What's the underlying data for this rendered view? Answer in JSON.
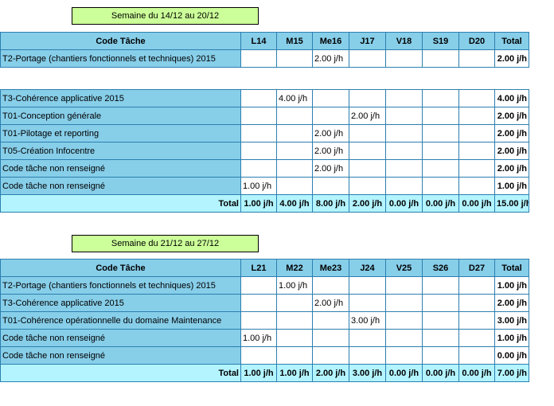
{
  "week1": {
    "label": "Semaine du 14/12 au 20/12",
    "headers": [
      "Code Tâche",
      "L14",
      "M15",
      "Me16",
      "J17",
      "V18",
      "S19",
      "D20",
      "Total"
    ],
    "rows_a": [
      {
        "code": "T2-Portage (chantiers fonctionnels et techniques) 2015",
        "days": [
          "",
          "",
          "2.00 j/h",
          "",
          "",
          "",
          ""
        ],
        "total": "2.00 j/h"
      }
    ],
    "rows_b": [
      {
        "code": "T3-Cohérence applicative 2015",
        "days": [
          "",
          "4.00 j/h",
          "",
          "",
          "",
          "",
          ""
        ],
        "total": "4.00 j/h"
      },
      {
        "code": "T01-Conception générale",
        "days": [
          "",
          "",
          "",
          "2.00 j/h",
          "",
          "",
          ""
        ],
        "total": "2.00 j/h"
      },
      {
        "code": "T01-Pilotage et reporting",
        "days": [
          "",
          "",
          "2.00 j/h",
          "",
          "",
          "",
          ""
        ],
        "total": "2.00 j/h"
      },
      {
        "code": "T05-Création Infocentre",
        "days": [
          "",
          "",
          "2.00 j/h",
          "",
          "",
          "",
          ""
        ],
        "total": "2.00 j/h"
      },
      {
        "code": "Code tâche non renseigné",
        "days": [
          "",
          "",
          "2.00 j/h",
          "",
          "",
          "",
          ""
        ],
        "total": "2.00 j/h"
      },
      {
        "code": "Code tâche non renseigné",
        "days": [
          "1.00 j/h",
          "",
          "",
          "",
          "",
          "",
          ""
        ],
        "total": "1.00 j/h"
      }
    ],
    "total_label": "Total",
    "totals": [
      "1.00 j/h",
      "4.00 j/h",
      "8.00 j/h",
      "2.00 j/h",
      "0.00 j/h",
      "0.00 j/h",
      "0.00 j/h"
    ],
    "grand_total": "15.00 j/h"
  },
  "week2": {
    "label": "Semaine du 21/12 au 27/12",
    "headers": [
      "Code Tâche",
      "L21",
      "M22",
      "Me23",
      "J24",
      "V25",
      "S26",
      "D27",
      "Total"
    ],
    "rows": [
      {
        "code": "T2-Portage (chantiers fonctionnels et techniques) 2015",
        "days": [
          "",
          "1.00 j/h",
          "",
          "",
          "",
          "",
          ""
        ],
        "total": "1.00 j/h"
      },
      {
        "code": "T3-Cohérence applicative 2015",
        "days": [
          "",
          "",
          "2.00 j/h",
          "",
          "",
          "",
          ""
        ],
        "total": "2.00 j/h"
      },
      {
        "code": "T01-Cohérence opérationnelle du domaine Maintenance",
        "days": [
          "",
          "",
          "",
          "3.00 j/h",
          "",
          "",
          ""
        ],
        "total": "3.00 j/h"
      },
      {
        "code": "Code tâche non renseigné",
        "days": [
          "1.00 j/h",
          "",
          "",
          "",
          "",
          "",
          ""
        ],
        "total": "1.00 j/h"
      },
      {
        "code": "Code tâche non renseigné",
        "days": [
          "",
          "",
          "",
          "",
          "",
          "",
          ""
        ],
        "total": "0.00 j/h"
      }
    ],
    "total_label": "Total",
    "totals": [
      "1.00 j/h",
      "1.00 j/h",
      "2.00 j/h",
      "3.00 j/h",
      "0.00 j/h",
      "0.00 j/h",
      "0.00 j/h"
    ],
    "grand_total": "7.00 j/h"
  }
}
